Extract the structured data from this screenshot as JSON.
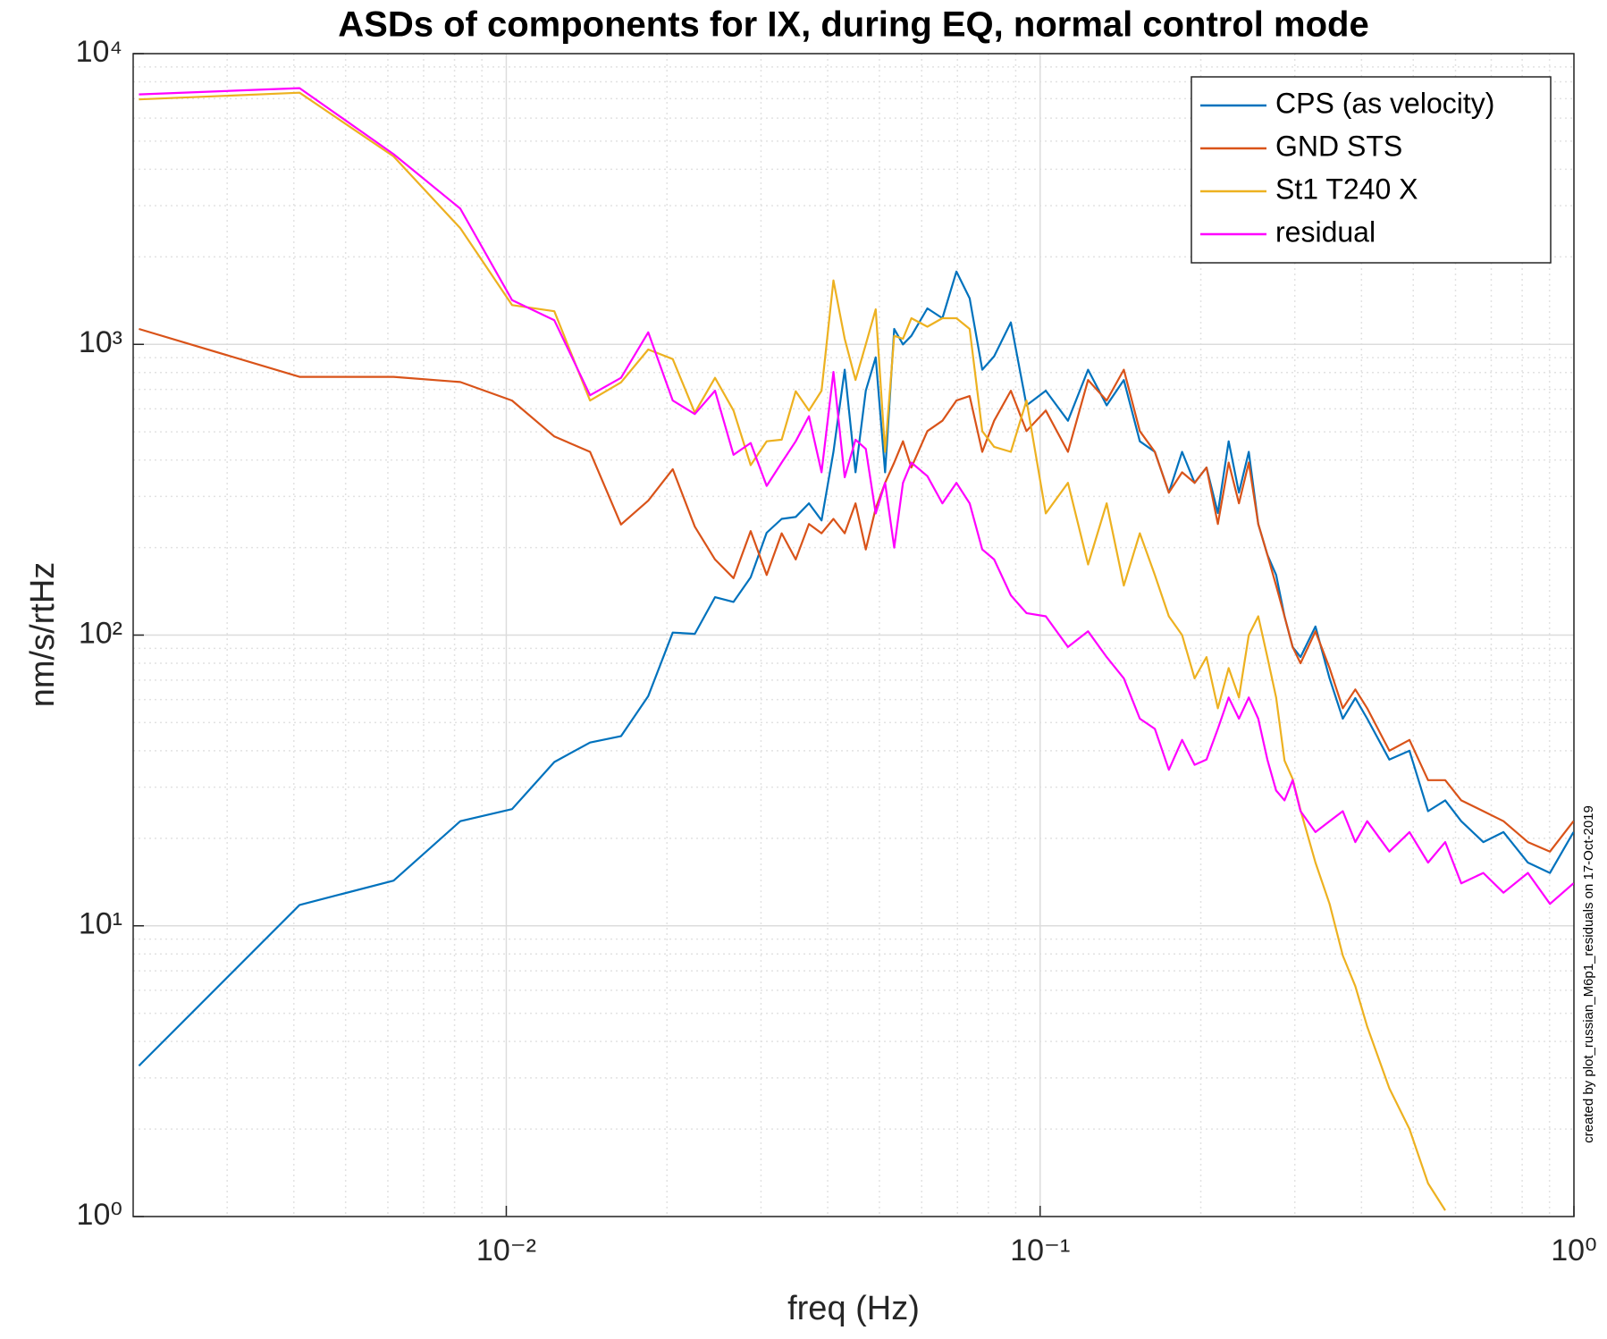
{
  "chart_data": {
    "type": "line",
    "title": "ASDs of components for IX, during EQ, normal control mode",
    "x_label": "freq (Hz)",
    "y_label": "nm/s/rtHz",
    "annotation": "created by plot_russian_M6p1_residuals on 17-Oct-2019",
    "x_scale": "log",
    "y_scale": "log",
    "grid": true,
    "minor_grid": true,
    "legend": "northeast",
    "xlim": [
      0.002,
      1
    ],
    "ylim": [
      1,
      10000
    ],
    "xticks": [
      {
        "value": 0.01,
        "label": "10⁻²"
      },
      {
        "value": 0.1,
        "label": "10⁻¹"
      },
      {
        "value": 1,
        "label": "10⁰"
      }
    ],
    "yticks": [
      {
        "value": 1,
        "label": "10⁰"
      },
      {
        "value": 10,
        "label": "10¹"
      },
      {
        "value": 100,
        "label": "10²"
      },
      {
        "value": 1000,
        "label": "10³"
      },
      {
        "value": 10000,
        "label": "10⁴"
      }
    ],
    "x": [
      0.00205,
      0.0041,
      0.00615,
      0.0082,
      0.01025,
      0.0123,
      0.01435,
      0.0164,
      0.01845,
      0.0205,
      0.02255,
      0.0246,
      0.02665,
      0.0287,
      0.03075,
      0.0328,
      0.03485,
      0.0369,
      0.03895,
      0.041,
      0.04305,
      0.0451,
      0.04715,
      0.0492,
      0.05125,
      0.0533,
      0.05535,
      0.0574,
      0.0615,
      0.0656,
      0.0697,
      0.0738,
      0.0779,
      0.082,
      0.08815,
      0.0943,
      0.1025,
      0.11275,
      0.123,
      0.13325,
      0.1435,
      0.15375,
      0.164,
      0.17425,
      0.1845,
      0.19475,
      0.205,
      0.21525,
      0.2255,
      0.23575,
      0.246,
      0.25625,
      0.2665,
      0.27675,
      0.287,
      0.29725,
      0.3075,
      0.328,
      0.3485,
      0.369,
      0.3895,
      0.41,
      0.451,
      0.492,
      0.533,
      0.574,
      0.615,
      0.6765,
      0.738,
      0.82,
      0.902,
      0.998
    ],
    "series": [
      {
        "name": "CPS (as velocity)",
        "color": "#0072BD",
        "values": [
          3.3,
          11.8,
          14.3,
          22.9,
          25.2,
          36.6,
          42.7,
          44.9,
          61.7,
          102,
          101,
          135,
          130,
          158,
          225,
          251,
          255,
          284,
          248,
          427,
          818,
          363,
          693,
          902,
          363,
          1130,
          1000,
          1070,
          1330,
          1230,
          1780,
          1440,
          818,
          910,
          1190,
          617,
          693,
          546,
          818,
          617,
          754,
          464,
          427,
          309,
          427,
          334,
          377,
          263,
          464,
          309,
          427,
          241,
          189,
          161,
          116,
          91,
          84,
          107,
          71,
          51.6,
          60.7,
          51.6,
          37.3,
          40,
          24.8,
          27,
          22.9,
          19.4,
          21,
          16.5,
          15.2,
          21
        ]
      },
      {
        "name": "GND STS",
        "color": "#D95319",
        "values": [
          1130,
          773,
          773,
          742,
          641,
          482,
          427,
          240,
          290,
          372,
          236,
          182,
          157,
          228,
          161,
          224,
          182,
          241,
          224,
          251,
          224,
          284,
          197,
          273,
          334,
          392,
          464,
          377,
          503,
          546,
          641,
          664,
          427,
          546,
          693,
          503,
          592,
          427,
          754,
          641,
          818,
          503,
          427,
          309,
          363,
          334,
          377,
          241,
          392,
          284,
          392,
          241,
          189,
          148,
          116,
          91,
          80,
          103,
          77,
          56,
          65,
          56,
          40,
          43.6,
          31.7,
          31.7,
          27,
          24.8,
          22.9,
          19.4,
          18,
          22.9
        ]
      },
      {
        "name": "St1 T240 X",
        "color": "#EDB120",
        "values": [
          6960,
          7340,
          4430,
          2510,
          1365,
          1300,
          641,
          740,
          960,
          890,
          582,
          767,
          592,
          384,
          464,
          470,
          690,
          592,
          693,
          1660,
          1045,
          754,
          1000,
          1320,
          427,
          1070,
          1045,
          1230,
          1150,
          1230,
          1230,
          1130,
          503,
          444,
          427,
          641,
          262,
          334,
          175,
          284,
          148,
          224,
          161,
          116,
          100,
          71,
          84,
          56,
          77,
          61,
          100,
          116,
          84,
          61,
          37,
          32,
          25,
          16.5,
          11.9,
          7.9,
          6.2,
          4.5,
          2.76,
          2,
          1.3,
          1.05,
          null,
          null,
          null,
          null,
          null,
          null
        ]
      },
      {
        "name": "residual",
        "color": "#FF00FF",
        "values": [
          7240,
          7610,
          4510,
          2930,
          1420,
          1210,
          668,
          767,
          1100,
          641,
          576,
          693,
          417,
          458,
          326,
          392,
          464,
          566,
          363,
          804,
          349,
          470,
          437,
          262,
          334,
          200,
          334,
          392,
          352,
          284,
          334,
          284,
          197,
          182,
          137,
          119,
          116,
          91,
          103,
          84,
          71,
          51.6,
          47.6,
          34.4,
          43.6,
          35.8,
          37.3,
          47.6,
          61,
          51.6,
          61,
          51.6,
          37.3,
          29.2,
          27,
          31.7,
          24.8,
          21,
          22.9,
          24.8,
          19.4,
          22.9,
          18,
          21,
          16.5,
          19.4,
          14,
          15.2,
          13,
          15.2,
          11.9,
          14
        ]
      }
    ]
  }
}
